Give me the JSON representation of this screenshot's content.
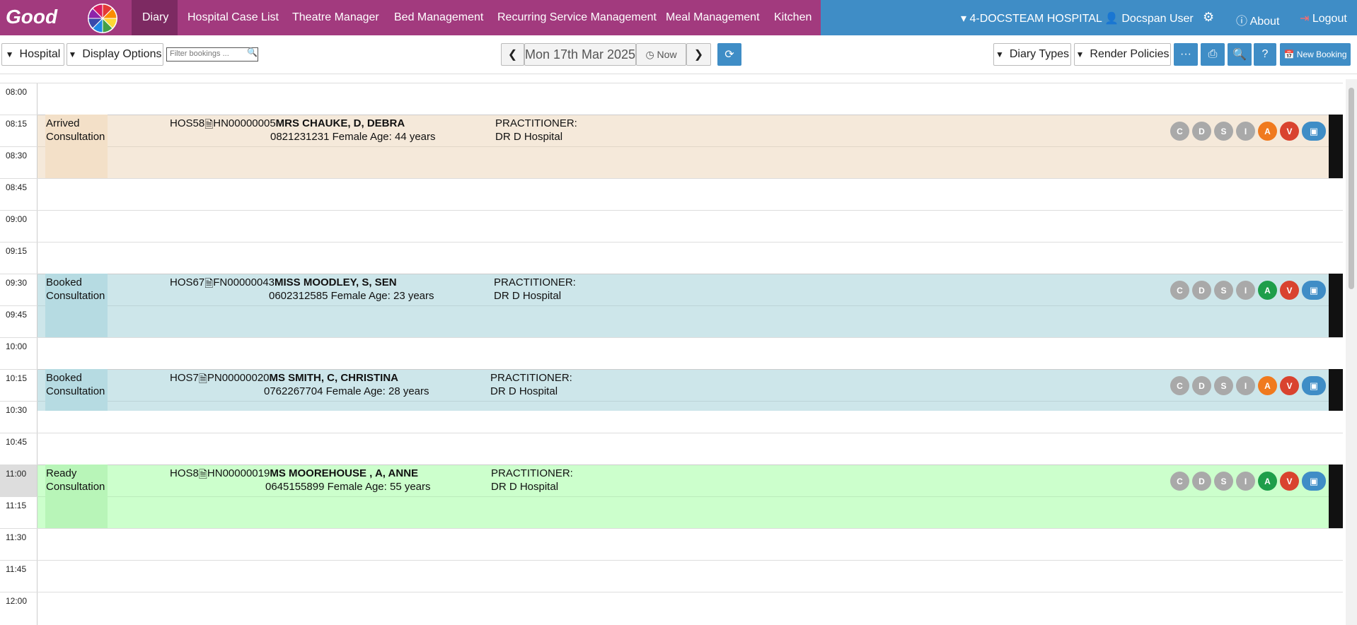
{
  "nav": {
    "logo": "Good",
    "items": [
      "Diary",
      "Hospital Case List",
      "Theatre Manager",
      "Bed Management",
      "Recurring Service Management",
      "Meal Management",
      "Kitchen"
    ],
    "hospital": "4-DOCSTEAM HOSPITAL",
    "user": "Docspan User",
    "about": "About",
    "logout": "Logout"
  },
  "toolbar": {
    "hospital": "Hospital",
    "display_options": "Display Options",
    "filter_placeholder": "Filter bookings ...",
    "date": "Mon 17th Mar 2025",
    "now": "Now",
    "diary_types": "Diary Types",
    "render_policies": "Render Policies",
    "help": "?",
    "new_booking": "New Booking"
  },
  "times": [
    "08:00",
    "08:15",
    "08:30",
    "08:45",
    "09:00",
    "09:15",
    "09:30",
    "09:45",
    "10:00",
    "10:15",
    "10:30",
    "10:45",
    "11:00",
    "11:15",
    "11:30",
    "11:45",
    "12:00"
  ],
  "action_labels": [
    "C",
    "D",
    "S",
    "I",
    "A",
    "V"
  ],
  "practitioner_label": "PRACTITIONER:",
  "appointments": [
    {
      "status": "Arrived",
      "type": "Consultation",
      "hos": "HOS58",
      "file": "HN00000005",
      "name": "MRS CHAUKE, D, DEBRA",
      "details": "0821231231 Female Age: 44 years",
      "doctor": "DR D Hospital",
      "a_color": "#f07a1e"
    },
    {
      "status": "Booked",
      "type": "Consultation",
      "hos": "HOS67",
      "file": "FN00000043",
      "name": "MISS MOODLEY, S, SEN",
      "details": "0602312585 Female Age: 23 years",
      "doctor": "DR D Hospital",
      "a_color": "#1e9e4a"
    },
    {
      "status": "Booked",
      "type": "Consultation",
      "hos": "HOS7",
      "file": "PN00000020",
      "name": "MS SMITH, C, CHRISTINA",
      "details": "0762267704 Female Age: 28 years",
      "doctor": "DR D Hospital",
      "a_color": "#f07a1e"
    },
    {
      "status": "Ready",
      "type": "Consultation",
      "hos": "HOS8",
      "file": "HN00000019",
      "name": "MS MOOREHOUSE , A, ANNE",
      "details": "0645155899 Female Age: 55 years",
      "doctor": "DR D Hospital",
      "a_color": "#1e9e4a"
    }
  ]
}
